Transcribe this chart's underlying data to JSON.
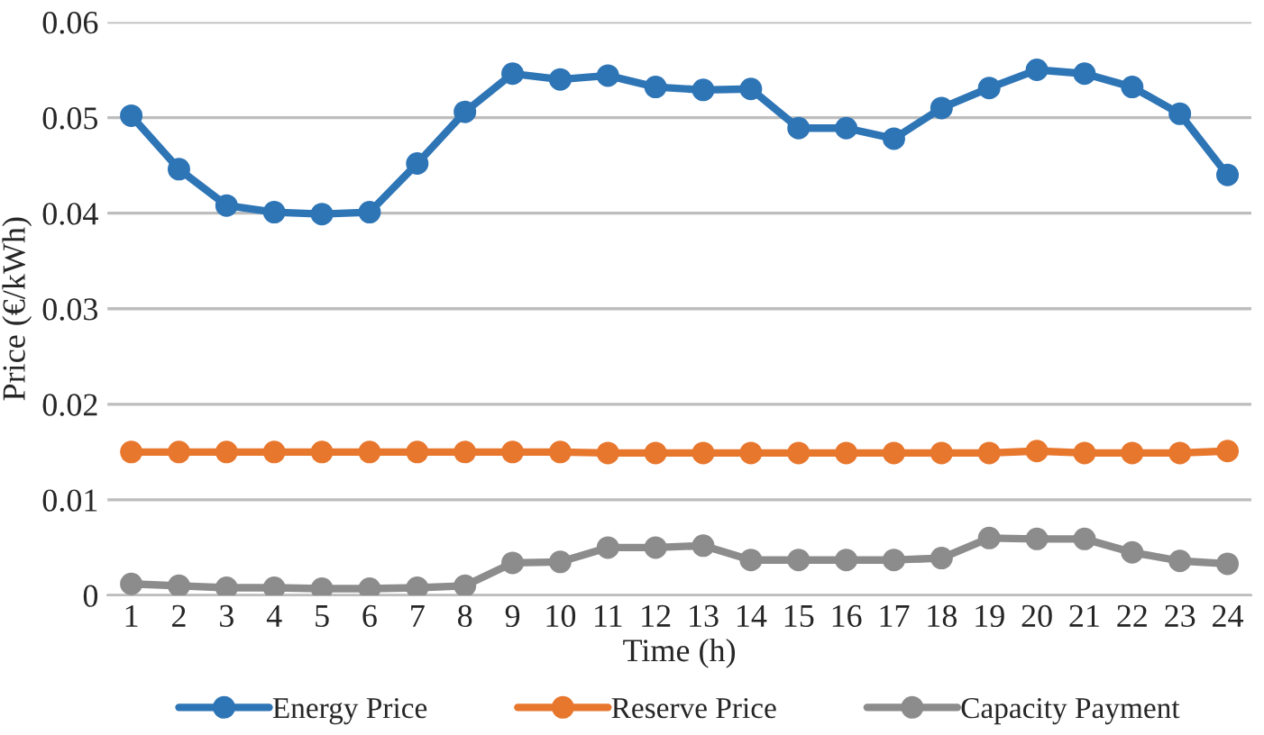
{
  "chart_data": {
    "type": "line",
    "xlabel": "Time (h)",
    "ylabel": "Price (€/kWh)",
    "categories": [
      "1",
      "2",
      "3",
      "4",
      "5",
      "6",
      "7",
      "8",
      "9",
      "10",
      "11",
      "12",
      "13",
      "14",
      "15",
      "16",
      "17",
      "18",
      "19",
      "20",
      "21",
      "22",
      "23",
      "24"
    ],
    "series": [
      {
        "name": "Energy Price",
        "color": "#2e75b6",
        "values": [
          0.0502,
          0.0446,
          0.0408,
          0.0401,
          0.0399,
          0.0401,
          0.0452,
          0.0506,
          0.0546,
          0.054,
          0.0544,
          0.0532,
          0.0529,
          0.053,
          0.0489,
          0.0489,
          0.0478,
          0.051,
          0.0531,
          0.055,
          0.0546,
          0.0532,
          0.0504,
          0.044
        ]
      },
      {
        "name": "Reserve Price",
        "color": "#e8772e",
        "values": [
          0.015,
          0.015,
          0.015,
          0.015,
          0.015,
          0.015,
          0.015,
          0.015,
          0.015,
          0.015,
          0.0149,
          0.0149,
          0.0149,
          0.0149,
          0.0149,
          0.0149,
          0.0149,
          0.0149,
          0.0149,
          0.0151,
          0.0149,
          0.0149,
          0.0149,
          0.0151
        ]
      },
      {
        "name": "Capacity Payment",
        "color": "#8c8c8c",
        "values": [
          0.0012,
          0.001,
          0.0008,
          0.0008,
          0.0007,
          0.0007,
          0.0008,
          0.001,
          0.0034,
          0.0035,
          0.005,
          0.005,
          0.0052,
          0.0037,
          0.0037,
          0.0037,
          0.0037,
          0.0039,
          0.006,
          0.0059,
          0.0059,
          0.0045,
          0.0036,
          0.0033
        ]
      }
    ],
    "ylim": [
      0,
      0.06
    ],
    "yticks": [
      {
        "value": 0,
        "label": "0"
      },
      0.01,
      0.02,
      0.03,
      0.04,
      0.05,
      0.06
    ],
    "grid": "y",
    "legend": "bottom",
    "marker": "circle",
    "line_style": "solid"
  }
}
